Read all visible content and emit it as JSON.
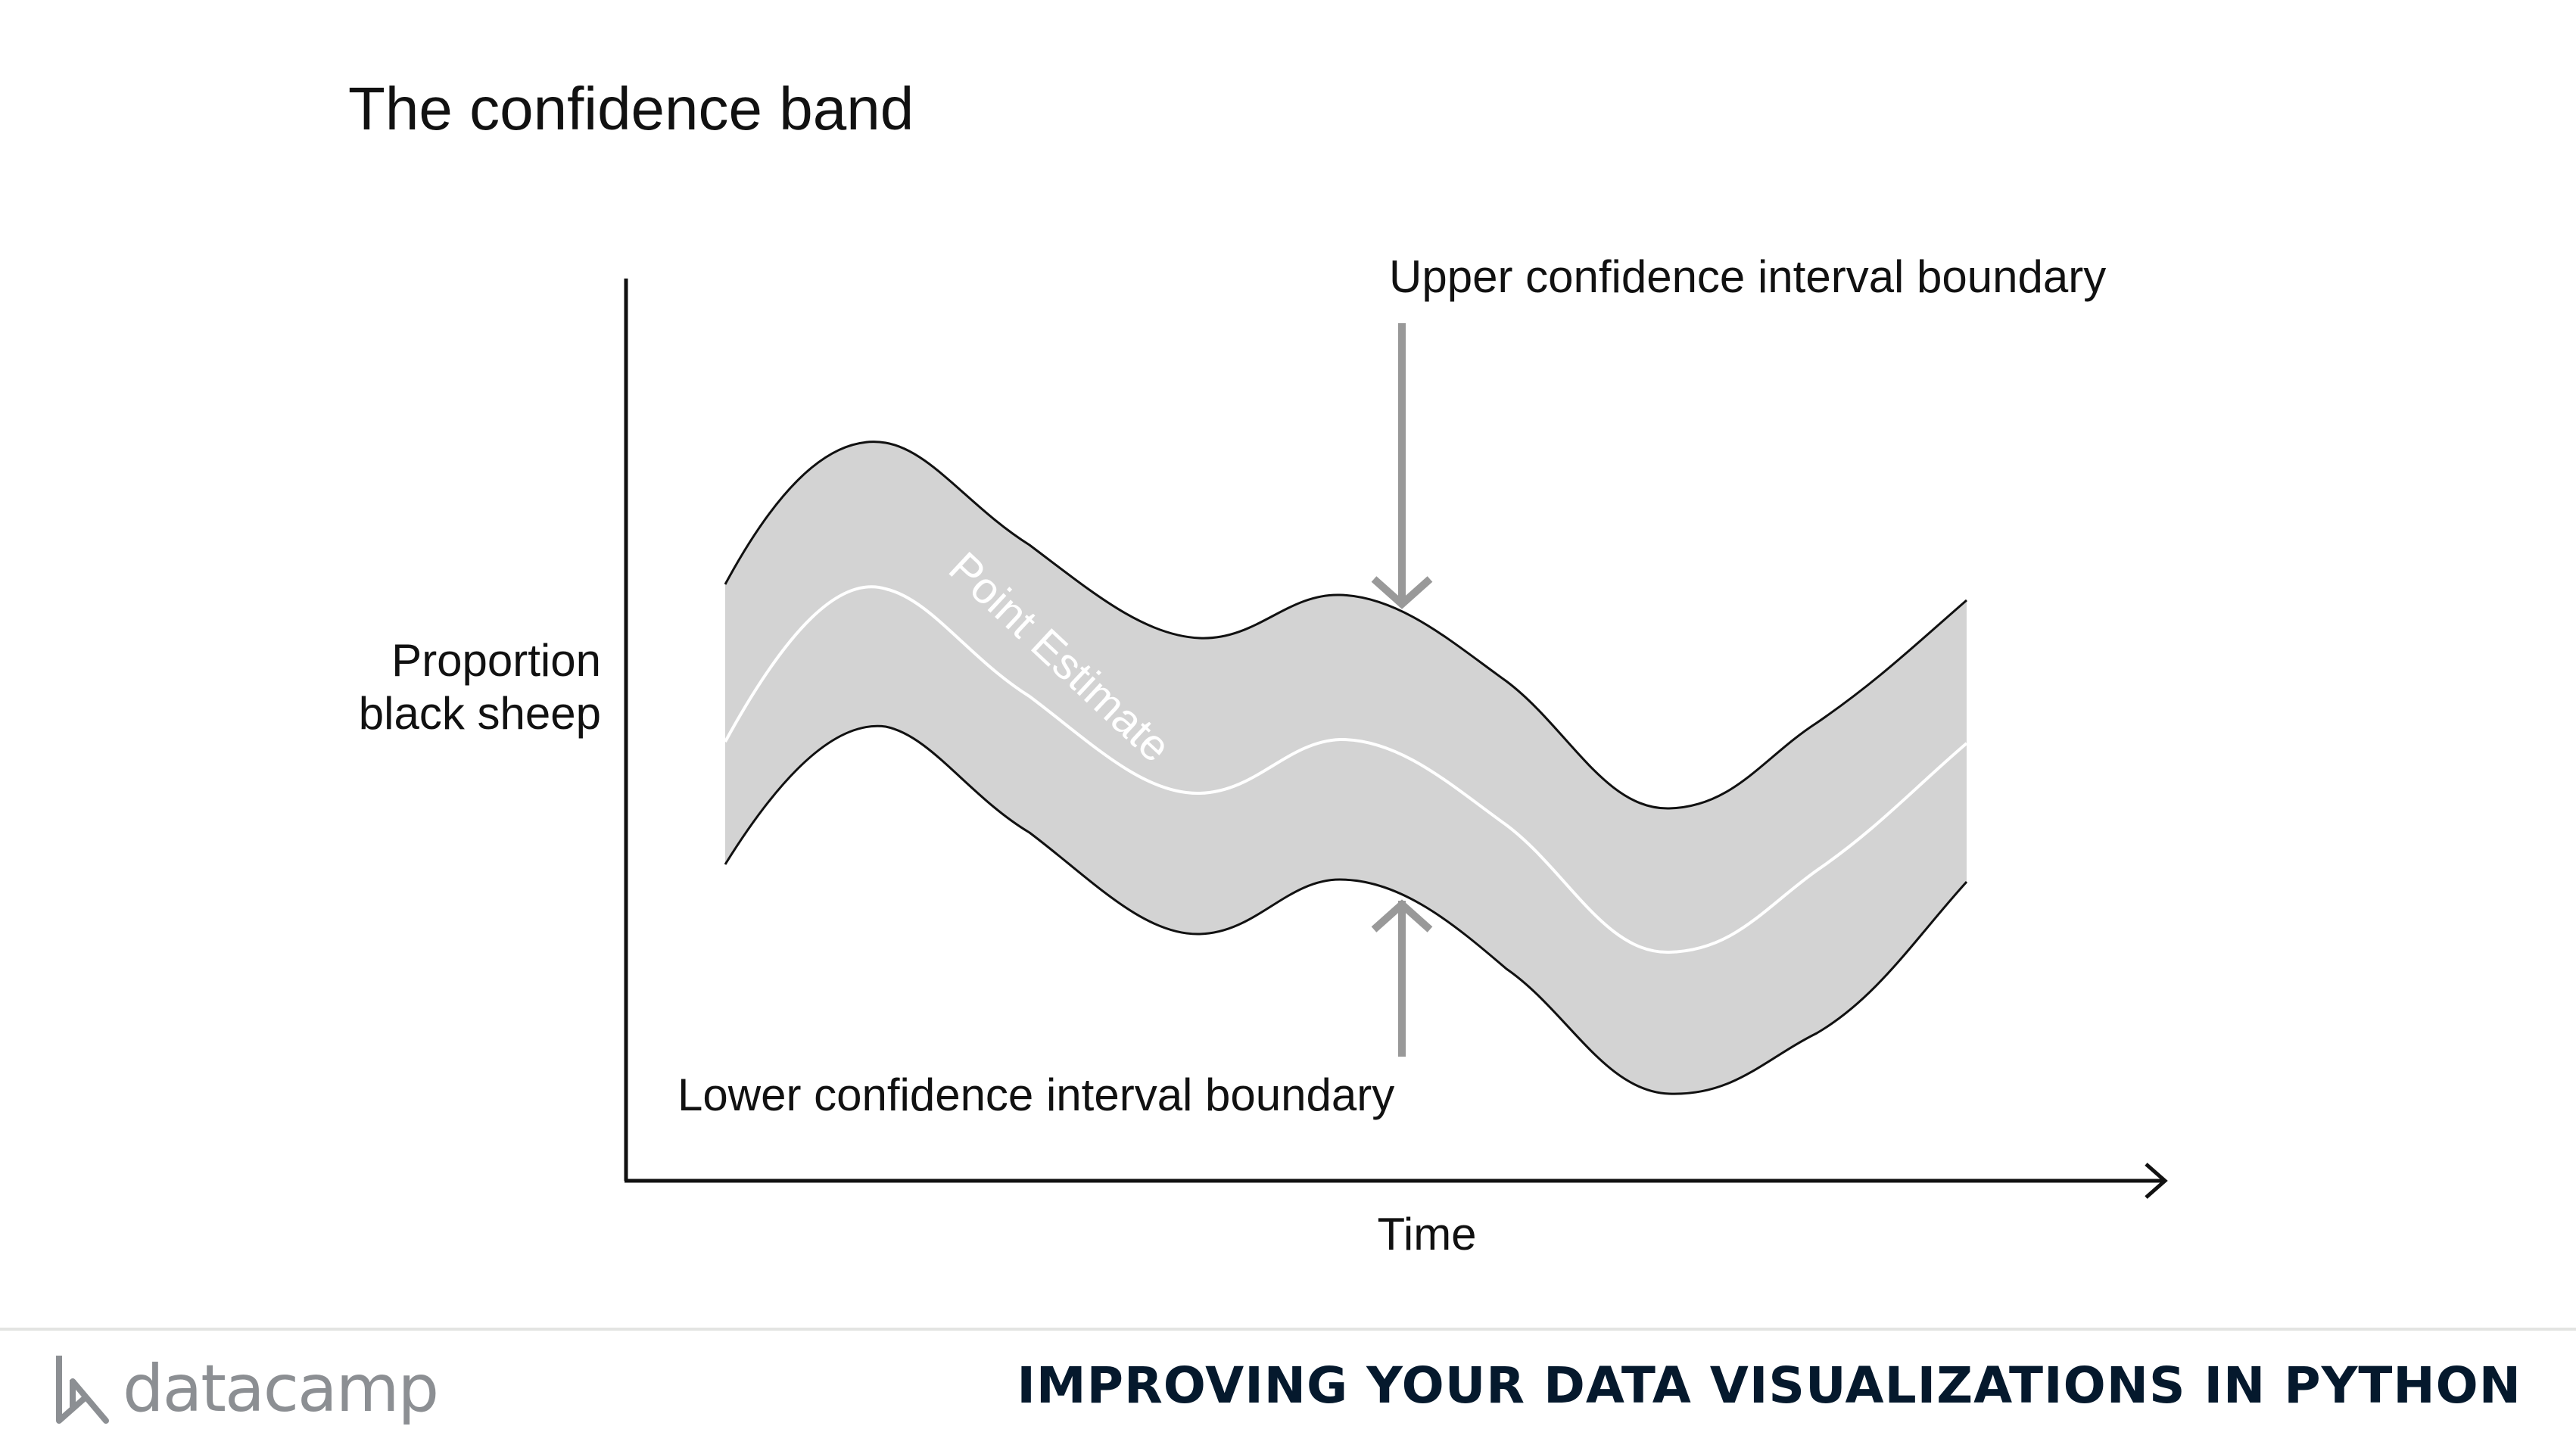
{
  "slide": {
    "title": "The confidence band"
  },
  "diagram": {
    "y_axis_label_line1": "Proportion",
    "y_axis_label_line2": "black sheep",
    "x_axis_label": "Time",
    "curve_label": "Point Estimate",
    "upper_annotation": "Upper confidence interval boundary",
    "lower_annotation": "Lower confidence interval boundary",
    "colors": {
      "band_fill": "#d3d3d3",
      "boundary_line": "#111111",
      "estimate_line": "#ffffff",
      "arrow": "#999999",
      "axis": "#111111"
    }
  },
  "footer": {
    "brand": "datacamp",
    "course_title": "IMPROVING YOUR DATA VISUALIZATIONS IN PYTHON",
    "logo_icon": "datacamp-logo-icon"
  }
}
